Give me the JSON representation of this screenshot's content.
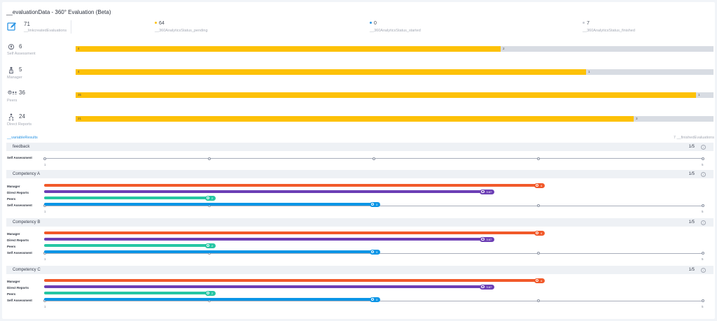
{
  "header": {
    "title": "__evaluationData - 360° Evaluation (Beta)"
  },
  "summary": {
    "total": {
      "value": "71",
      "label": "__linkcreatedEvaluations",
      "icon": "edit-icon"
    },
    "pending": {
      "value": "64",
      "label": "__360AnalyticsStatus_pending",
      "color": "#fdc107"
    },
    "started": {
      "value": "0",
      "label": "__360AnalyticsStatus_started",
      "color": "#2b95e4"
    },
    "finished": {
      "value": "7",
      "label": "__360AnalyticsStatus_finished",
      "color": "#c9ccd3"
    }
  },
  "roles": [
    {
      "label": "Self Assessment",
      "count": "6",
      "pending": 4,
      "finished": 2,
      "icon": "user-icon"
    },
    {
      "label": "Manager",
      "count": "5",
      "pending": 4,
      "finished": 1,
      "icon": "manager-icon"
    },
    {
      "label": "Peers",
      "count": "36",
      "pending": 35,
      "finished": 1,
      "icon": "peers-icon"
    },
    {
      "label": "Direct Reports",
      "count": "24",
      "pending": 21,
      "finished": 3,
      "icon": "direct-reports-icon"
    }
  ],
  "results": {
    "link_label": "__variableResults",
    "finished_label": "7 __finishedEvaluations"
  },
  "sections": [
    {
      "name": "feedback",
      "page": "1/5",
      "rows": [
        {
          "label": "Self Assessment"
        }
      ]
    },
    {
      "name": "Competency A",
      "page": "1/5",
      "rows": [
        {
          "label": "Manager",
          "value": 4,
          "value_label": "4",
          "color": "#f1592a"
        },
        {
          "label": "Direct Reports",
          "value": 3.67,
          "value_label": "3.67",
          "color": "#6c3fb5"
        },
        {
          "label": "Peers",
          "value": 2,
          "value_label": "2",
          "color": "#26c6a3"
        },
        {
          "label": "Self Assessment",
          "value": 3,
          "value_label": "3",
          "color": "#0b95e6"
        }
      ]
    },
    {
      "name": "Competency B",
      "page": "1/5",
      "rows": [
        {
          "label": "Manager",
          "value": 4,
          "value_label": "4",
          "color": "#f1592a"
        },
        {
          "label": "Direct Reports",
          "value": 3.67,
          "value_label": "3.67",
          "color": "#6c3fb5"
        },
        {
          "label": "Peers",
          "value": 2,
          "value_label": "2",
          "color": "#26c6a3"
        },
        {
          "label": "Self Assessment",
          "value": 3,
          "value_label": "3",
          "color": "#0b95e6"
        }
      ]
    },
    {
      "name": "Competency C",
      "page": "1/5",
      "rows": [
        {
          "label": "Manager",
          "value": 4,
          "value_label": "4",
          "color": "#f1592a"
        },
        {
          "label": "Direct Reports",
          "value": 3.67,
          "value_label": "3.67",
          "color": "#6c3fb5"
        },
        {
          "label": "Peers",
          "value": 2,
          "value_label": "2",
          "color": "#26c6a3"
        },
        {
          "label": "Self Assessment",
          "value": 3,
          "value_label": "3",
          "color": "#0b95e6"
        }
      ]
    }
  ],
  "scale": {
    "min": 1,
    "max": 5,
    "min_label": "1",
    "max_label": "5"
  },
  "info_icon": {
    "glyph": "i"
  }
}
